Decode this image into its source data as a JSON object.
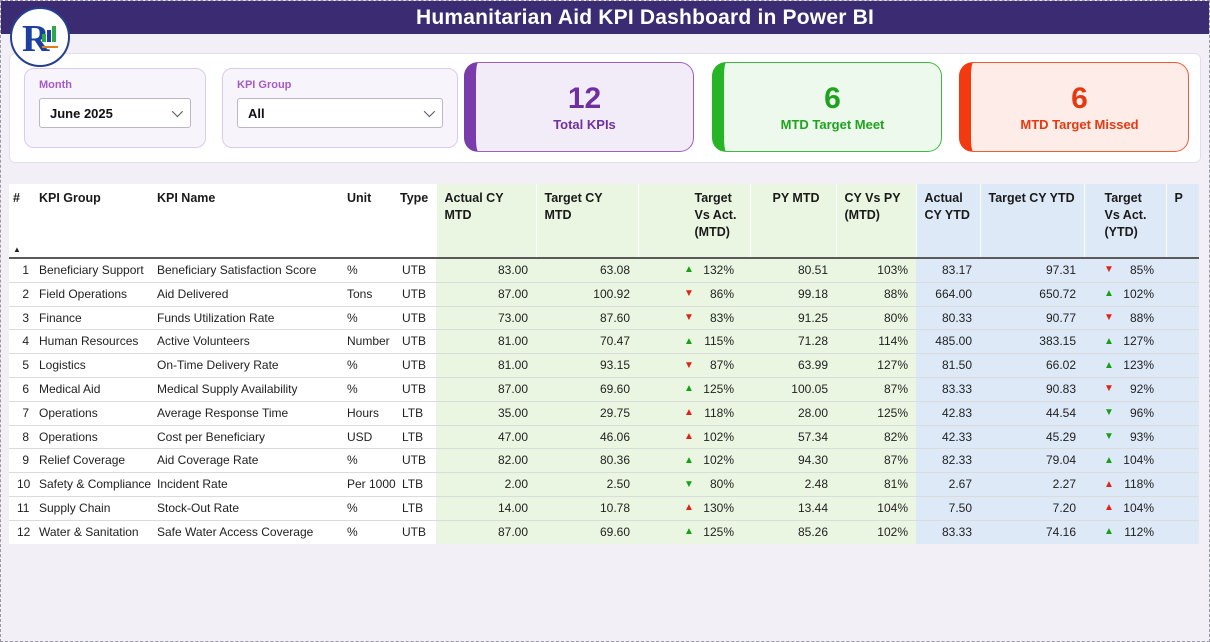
{
  "title_bar": {
    "title": "Humanitarian Aid KPI Dashboard  in Power BI"
  },
  "logo": {
    "letter": "R"
  },
  "filters": {
    "month": {
      "label": "Month",
      "value": "June 2025"
    },
    "kpi_group": {
      "label": "KPI Group",
      "value": "All"
    }
  },
  "summary_cards": [
    {
      "value": "12",
      "label": "Total KPIs",
      "accent": "#7a3cab",
      "text_color": "#7030a0",
      "bg": "#f2ecf8",
      "border": "#9a62c0"
    },
    {
      "value": "6",
      "label": "MTD Target Meet",
      "accent": "#27b427",
      "text_color": "#1fa31f",
      "bg": "#edf9ec",
      "border": "#3dbb3d"
    },
    {
      "value": "6",
      "label": "MTD Target Missed",
      "accent": "#f2390f",
      "text_color": "#e63911",
      "bg": "#fdece8",
      "border": "#f25b36"
    }
  ],
  "colors": {
    "good": "#16a016",
    "bad": "#e02412",
    "title_bar": "#3b2b72",
    "mtd_zone": "#eaf6e2",
    "ytd_zone": "#dde9f6"
  },
  "table": {
    "sort_indicator": "▲",
    "headers": {
      "num": "#",
      "kpi_group": "KPI Group",
      "kpi_name": "KPI Name",
      "unit": "Unit",
      "type": "Type",
      "actual_cy_mtd": "Actual CY MTD",
      "target_cy_mtd": "Target CY MTD",
      "target_vs_act_mtd": "Target Vs Act. (MTD)",
      "py_mtd": "PY MTD",
      "cy_vs_py_mtd": "CY Vs PY (MTD)",
      "actual_cy_ytd": "Actual CY YTD",
      "target_cy_ytd": "Target CY YTD",
      "target_vs_act_ytd": "Target Vs Act. (YTD)",
      "py_ytd_truncated": "P"
    },
    "rows": [
      {
        "num": "1",
        "group": "Beneficiary Support",
        "name": "Beneficiary Satisfaction Score",
        "unit": "%",
        "type": "UTB",
        "actual_mtd": "83.00",
        "target_mtd": "63.08",
        "tva_mtd": {
          "dir": "up",
          "status": "good",
          "value": "132%"
        },
        "py_mtd": "80.51",
        "cy_vs_py_mtd": "103%",
        "actual_ytd": "83.17",
        "target_ytd": "97.31",
        "tva_ytd": {
          "dir": "down",
          "status": "bad",
          "value": "85%"
        }
      },
      {
        "num": "2",
        "group": "Field Operations",
        "name": "Aid Delivered",
        "unit": "Tons",
        "type": "UTB",
        "actual_mtd": "87.00",
        "target_mtd": "100.92",
        "tva_mtd": {
          "dir": "down",
          "status": "bad",
          "value": "86%"
        },
        "py_mtd": "99.18",
        "cy_vs_py_mtd": "88%",
        "actual_ytd": "664.00",
        "target_ytd": "650.72",
        "tva_ytd": {
          "dir": "up",
          "status": "good",
          "value": "102%"
        }
      },
      {
        "num": "3",
        "group": "Finance",
        "name": "Funds Utilization Rate",
        "unit": "%",
        "type": "UTB",
        "actual_mtd": "73.00",
        "target_mtd": "87.60",
        "tva_mtd": {
          "dir": "down",
          "status": "bad",
          "value": "83%"
        },
        "py_mtd": "91.25",
        "cy_vs_py_mtd": "80%",
        "actual_ytd": "80.33",
        "target_ytd": "90.77",
        "tva_ytd": {
          "dir": "down",
          "status": "bad",
          "value": "88%"
        }
      },
      {
        "num": "4",
        "group": "Human Resources",
        "name": "Active Volunteers",
        "unit": "Number",
        "type": "UTB",
        "actual_mtd": "81.00",
        "target_mtd": "70.47",
        "tva_mtd": {
          "dir": "up",
          "status": "good",
          "value": "115%"
        },
        "py_mtd": "71.28",
        "cy_vs_py_mtd": "114%",
        "actual_ytd": "485.00",
        "target_ytd": "383.15",
        "tva_ytd": {
          "dir": "up",
          "status": "good",
          "value": "127%"
        }
      },
      {
        "num": "5",
        "group": "Logistics",
        "name": "On-Time Delivery Rate",
        "unit": "%",
        "type": "UTB",
        "actual_mtd": "81.00",
        "target_mtd": "93.15",
        "tva_mtd": {
          "dir": "down",
          "status": "bad",
          "value": "87%"
        },
        "py_mtd": "63.99",
        "cy_vs_py_mtd": "127%",
        "actual_ytd": "81.50",
        "target_ytd": "66.02",
        "tva_ytd": {
          "dir": "up",
          "status": "good",
          "value": "123%"
        }
      },
      {
        "num": "6",
        "group": "Medical Aid",
        "name": "Medical Supply Availability",
        "unit": "%",
        "type": "UTB",
        "actual_mtd": "87.00",
        "target_mtd": "69.60",
        "tva_mtd": {
          "dir": "up",
          "status": "good",
          "value": "125%"
        },
        "py_mtd": "100.05",
        "cy_vs_py_mtd": "87%",
        "actual_ytd": "83.33",
        "target_ytd": "90.83",
        "tva_ytd": {
          "dir": "down",
          "status": "bad",
          "value": "92%"
        }
      },
      {
        "num": "7",
        "group": "Operations",
        "name": "Average Response Time",
        "unit": "Hours",
        "type": "LTB",
        "actual_mtd": "35.00",
        "target_mtd": "29.75",
        "tva_mtd": {
          "dir": "up",
          "status": "bad",
          "value": "118%"
        },
        "py_mtd": "28.00",
        "cy_vs_py_mtd": "125%",
        "actual_ytd": "42.83",
        "target_ytd": "44.54",
        "tva_ytd": {
          "dir": "down",
          "status": "good",
          "value": "96%"
        }
      },
      {
        "num": "8",
        "group": "Operations",
        "name": "Cost per Beneficiary",
        "unit": "USD",
        "type": "LTB",
        "actual_mtd": "47.00",
        "target_mtd": "46.06",
        "tva_mtd": {
          "dir": "up",
          "status": "bad",
          "value": "102%"
        },
        "py_mtd": "57.34",
        "cy_vs_py_mtd": "82%",
        "actual_ytd": "42.33",
        "target_ytd": "45.29",
        "tva_ytd": {
          "dir": "down",
          "status": "good",
          "value": "93%"
        }
      },
      {
        "num": "9",
        "group": "Relief Coverage",
        "name": "Aid Coverage Rate",
        "unit": "%",
        "type": "UTB",
        "actual_mtd": "82.00",
        "target_mtd": "80.36",
        "tva_mtd": {
          "dir": "up",
          "status": "good",
          "value": "102%"
        },
        "py_mtd": "94.30",
        "cy_vs_py_mtd": "87%",
        "actual_ytd": "82.33",
        "target_ytd": "79.04",
        "tva_ytd": {
          "dir": "up",
          "status": "good",
          "value": "104%"
        }
      },
      {
        "num": "10",
        "group": "Safety & Compliance",
        "name": "Incident Rate",
        "unit": "Per 1000",
        "type": "LTB",
        "actual_mtd": "2.00",
        "target_mtd": "2.50",
        "tva_mtd": {
          "dir": "down",
          "status": "good",
          "value": "80%"
        },
        "py_mtd": "2.48",
        "cy_vs_py_mtd": "81%",
        "actual_ytd": "2.67",
        "target_ytd": "2.27",
        "tva_ytd": {
          "dir": "up",
          "status": "bad",
          "value": "118%"
        }
      },
      {
        "num": "11",
        "group": "Supply Chain",
        "name": "Stock-Out Rate",
        "unit": "%",
        "type": "LTB",
        "actual_mtd": "14.00",
        "target_mtd": "10.78",
        "tva_mtd": {
          "dir": "up",
          "status": "bad",
          "value": "130%"
        },
        "py_mtd": "13.44",
        "cy_vs_py_mtd": "104%",
        "actual_ytd": "7.50",
        "target_ytd": "7.20",
        "tva_ytd": {
          "dir": "up",
          "status": "bad",
          "value": "104%"
        }
      },
      {
        "num": "12",
        "group": "Water & Sanitation",
        "name": "Safe Water Access Coverage",
        "unit": "%",
        "type": "UTB",
        "actual_mtd": "87.00",
        "target_mtd": "69.60",
        "tva_mtd": {
          "dir": "up",
          "status": "good",
          "value": "125%"
        },
        "py_mtd": "85.26",
        "cy_vs_py_mtd": "102%",
        "actual_ytd": "83.33",
        "target_ytd": "74.16",
        "tva_ytd": {
          "dir": "up",
          "status": "good",
          "value": "112%"
        }
      }
    ]
  }
}
